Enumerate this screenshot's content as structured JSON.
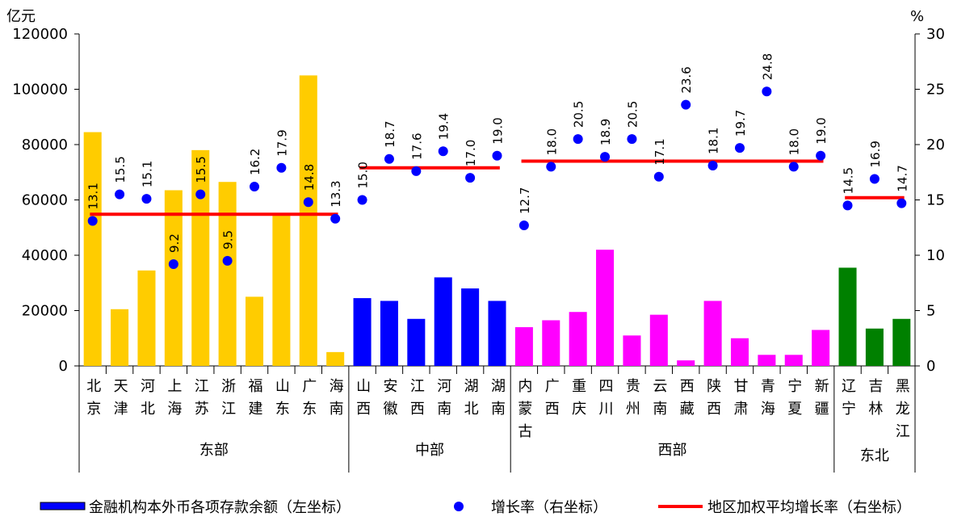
{
  "chart_data": {
    "type": "bar-dot",
    "y_label": "亿元",
    "y2_label": "%",
    "ylim": [
      0,
      120000
    ],
    "yticks": [
      0,
      20000,
      40000,
      60000,
      80000,
      100000,
      120000
    ],
    "y2lim": [
      0,
      30
    ],
    "y2ticks": [
      0,
      5,
      10,
      15,
      20,
      25,
      30
    ],
    "series": [
      {
        "name": "金融机构本外币各项存款余额（左坐标）",
        "color": "#0000ff"
      },
      {
        "name": "增长率（右坐标）",
        "color": "#0000ff",
        "axis": "y2"
      },
      {
        "name": "地区加权平均增长率（右坐标）",
        "color": "#ff0000",
        "axis": "y2"
      }
    ],
    "regions": [
      {
        "name": "东部",
        "color": "#ffcc00",
        "average": 13.7,
        "categories": [
          "北京",
          "天津",
          "河北",
          "上海",
          "江苏",
          "浙江",
          "福建",
          "山东",
          "广东",
          "海南"
        ],
        "deposits": [
          84500,
          20500,
          34500,
          63500,
          78000,
          66500,
          25000,
          55000,
          105000,
          5000
        ],
        "growth": [
          13.1,
          15.5,
          15.1,
          9.2,
          15.5,
          9.5,
          16.2,
          17.9,
          14.8,
          13.3
        ],
        "growth_labels": [
          "13.1",
          "15.5",
          "15.1",
          "9.2",
          "15.5",
          "9.5",
          "16.2",
          "17.9",
          "14.8",
          "13.3"
        ]
      },
      {
        "name": "中部",
        "color": "#0000ff",
        "average": 17.9,
        "categories": [
          "山西",
          "安徽",
          "江西",
          "河南",
          "湖北",
          "湖南"
        ],
        "deposits": [
          24500,
          23500,
          17000,
          32000,
          28000,
          23500
        ],
        "growth": [
          15.0,
          18.7,
          17.6,
          19.4,
          17.0,
          19.0
        ],
        "growth_labels": [
          "15.0",
          "18.7",
          "17.6",
          "19.4",
          "17.0",
          "19.0"
        ]
      },
      {
        "name": "西部",
        "color": "#ff00ff",
        "average": 18.5,
        "categories": [
          "内蒙古",
          "广西",
          "重庆",
          "四川",
          "贵州",
          "云南",
          "西藏",
          "陕西",
          "甘肃",
          "青海",
          "宁夏",
          "新疆"
        ],
        "deposits": [
          14000,
          16500,
          19500,
          42000,
          11000,
          18500,
          2000,
          23500,
          10000,
          4000,
          4000,
          13000
        ],
        "growth": [
          12.7,
          18.0,
          20.5,
          18.9,
          20.5,
          17.1,
          23.6,
          18.1,
          19.7,
          24.8,
          18.0,
          19.0
        ],
        "growth_labels": [
          "12.7",
          "18.0",
          "20.5",
          "18.9",
          "20.5",
          "17.1",
          "23.6",
          "18.1",
          "19.7",
          "24.8",
          "18.0",
          "19.0"
        ]
      },
      {
        "name": "东北",
        "color": "#008000",
        "average": 15.2,
        "categories": [
          "辽宁",
          "吉林",
          "黑龙江"
        ],
        "deposits": [
          35500,
          13500,
          17000
        ],
        "growth": [
          14.5,
          16.9,
          14.7
        ],
        "growth_labels": [
          "14.5",
          "16.9",
          "14.7"
        ]
      }
    ]
  }
}
